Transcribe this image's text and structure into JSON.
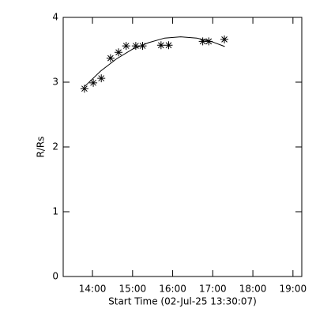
{
  "chart_data": {
    "type": "scatter",
    "xlabel": "Start Time (02-Jul-25 13:30:07)",
    "ylabel": "R/Rs",
    "xlim": [
      13.27,
      19.22
    ],
    "ylim": [
      0,
      4
    ],
    "xticks": [
      {
        "value": 14,
        "label": "14:00"
      },
      {
        "value": 15,
        "label": "15:00"
      },
      {
        "value": 16,
        "label": "16:00"
      },
      {
        "value": 17,
        "label": "17:00"
      },
      {
        "value": 18,
        "label": "18:00"
      },
      {
        "value": 19,
        "label": "19:00"
      }
    ],
    "yticks": [
      0,
      1,
      2,
      3,
      4
    ],
    "points": {
      "color": "#000000",
      "x": [
        13.8,
        14.02,
        14.22,
        14.45,
        14.65,
        14.84,
        15.08,
        15.25,
        15.71,
        15.9,
        16.75,
        16.9,
        17.29
      ],
      "y": [
        2.9,
        2.99,
        3.06,
        3.37,
        3.46,
        3.56,
        3.56,
        3.56,
        3.57,
        3.57,
        3.63,
        3.63,
        3.66
      ]
    },
    "fit": {
      "color": "#000000",
      "x": [
        13.8,
        14.2,
        14.6,
        15.0,
        15.4,
        15.8,
        16.2,
        16.6,
        17.0,
        17.3
      ],
      "y": [
        2.93,
        3.17,
        3.36,
        3.51,
        3.61,
        3.68,
        3.7,
        3.68,
        3.62,
        3.55
      ]
    }
  }
}
